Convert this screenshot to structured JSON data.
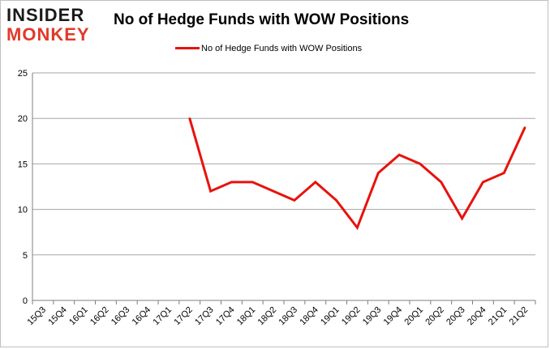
{
  "logo": {
    "line1": "INSIDER",
    "line2": "MONKEY"
  },
  "chart_data": {
    "type": "line",
    "title": "No of Hedge Funds with WOW Positions",
    "xlabel": "",
    "ylabel": "",
    "categories": [
      "15Q3",
      "15Q4",
      "16Q1",
      "16Q2",
      "16Q3",
      "16Q4",
      "17Q1",
      "17Q2",
      "17Q3",
      "17Q4",
      "18Q1",
      "18Q2",
      "18Q3",
      "18Q4",
      "19Q1",
      "19Q2",
      "19Q3",
      "19Q4",
      "20Q1",
      "20Q2",
      "20Q3",
      "20Q4",
      "21Q1",
      "21Q2"
    ],
    "series": [
      {
        "name": "No of Hedge Funds with WOW Positions",
        "color": "#e8120c",
        "values": [
          null,
          null,
          null,
          null,
          null,
          null,
          null,
          20,
          12,
          13,
          13,
          12,
          11,
          13,
          11,
          8,
          14,
          16,
          15,
          13,
          9,
          13,
          14,
          19
        ]
      }
    ],
    "ylim": [
      0,
      25
    ],
    "yticks": [
      0,
      5,
      10,
      15,
      20,
      25
    ],
    "grid": true,
    "legend_position": "top-center"
  }
}
